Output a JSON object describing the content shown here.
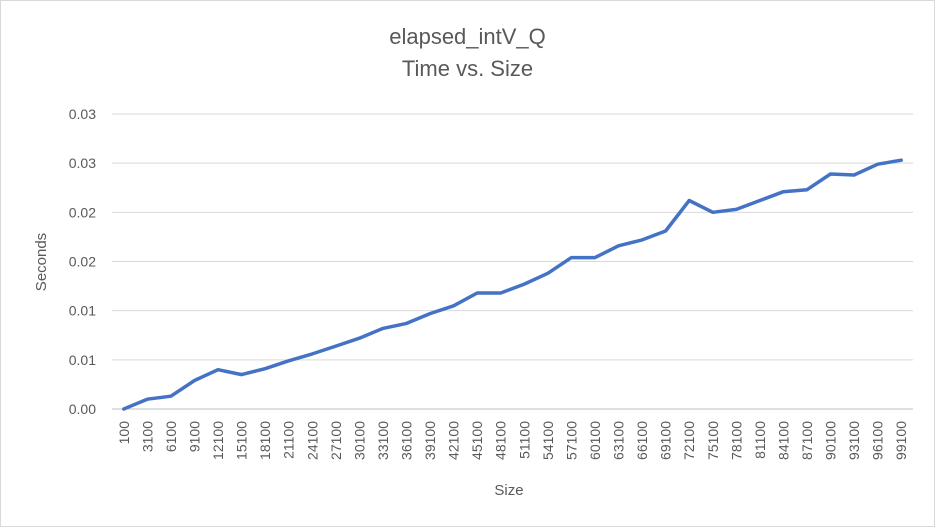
{
  "chart_data": {
    "type": "line",
    "title": "elapsed_intV_Q",
    "subtitle": "Time vs. Size",
    "xlabel": "Size",
    "ylabel": "Seconds",
    "ylim": [
      0,
      0.03
    ],
    "y_tick_values": [
      0,
      0.005,
      0.01,
      0.015,
      0.02,
      0.025,
      0.03
    ],
    "y_tick_labels": [
      "0.00",
      "0.01",
      "0.01",
      "0.02",
      "0.02",
      "0.03",
      "0.03"
    ],
    "grid": true,
    "legend": "none",
    "categories": [
      "100",
      "3100",
      "6100",
      "9100",
      "12100",
      "15100",
      "18100",
      "21100",
      "24100",
      "27100",
      "30100",
      "33100",
      "36100",
      "39100",
      "42100",
      "45100",
      "48100",
      "51100",
      "54100",
      "57100",
      "60100",
      "63100",
      "66100",
      "69100",
      "72100",
      "75100",
      "78100",
      "81100",
      "84100",
      "87100",
      "90100",
      "93100",
      "96100",
      "99100"
    ],
    "series": [
      {
        "color": "#4472c4",
        "values": [
          0.0,
          0.001,
          0.0013,
          0.0029,
          0.004,
          0.0035,
          0.0041,
          0.0049,
          0.0056,
          0.0064,
          0.0072,
          0.0082,
          0.0087,
          0.0097,
          0.0105,
          0.0118,
          0.0118,
          0.0127,
          0.0138,
          0.0154,
          0.0154,
          0.0166,
          0.0172,
          0.0181,
          0.0212,
          0.02,
          0.0203,
          0.0212,
          0.0221,
          0.0223,
          0.0239,
          0.0238,
          0.0249,
          0.0253
        ]
      }
    ]
  }
}
